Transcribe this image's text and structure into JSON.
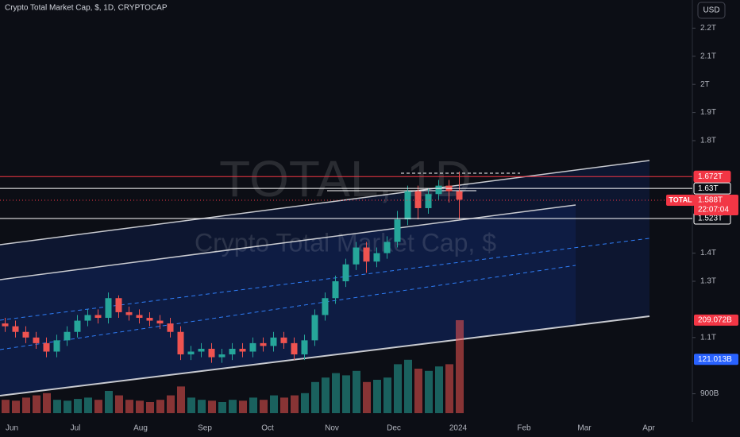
{
  "chart_data": {
    "type": "candlestick",
    "title": "Crypto Total Market Cap, $, 1D, CRYPTOCAP",
    "currency_button": "USD",
    "watermark": "TOTAL, 1D",
    "watermark_subtitle": "Crypto Total Market Cap, $",
    "time_labels": [
      "Jun",
      "Jul",
      "Aug",
      "Sep",
      "Oct",
      "Nov",
      "Dec",
      "2024",
      "Feb",
      "Mar",
      "Apr"
    ],
    "up_color": "#26a69a",
    "down_color": "#ef5350",
    "ylim": [
      0.8,
      2.3
    ],
    "yticks": [
      {
        "value": 0.9,
        "label": "900B"
      },
      {
        "value": 1.1,
        "label": "1.1T"
      },
      {
        "value": 1.3,
        "label": "1.3T"
      },
      {
        "value": 1.4,
        "label": "1.4T"
      },
      {
        "value": 1.8,
        "label": "1.8T"
      },
      {
        "value": 1.9,
        "label": "1.9T"
      },
      {
        "value": 2,
        "label": "2T"
      },
      {
        "value": 2.1,
        "label": "2.1T"
      },
      {
        "value": 2.2,
        "label": "2.2T"
      }
    ],
    "price_lines": [
      {
        "value": 1.672,
        "label": "1.672T",
        "color": "#f23645"
      },
      {
        "value": 1.63,
        "label": "1.63T",
        "color": "#ffffff"
      },
      {
        "value": 1.523,
        "label": "1.523T",
        "color": "#ffffff"
      }
    ],
    "last_price": {
      "name": "TOTAL",
      "value": 1.588,
      "label": "1.588T",
      "countdown": "22:07:04",
      "color": "#f23645"
    },
    "volume_tags": [
      {
        "value": 209.072,
        "label": "209.072B",
        "color": "#f23645"
      },
      {
        "value": 121.013,
        "label": "121.013B",
        "color": "#2962ff"
      }
    ],
    "candles": [
      [
        1.15,
        1.17,
        1.12,
        1.14
      ],
      [
        1.14,
        1.16,
        1.1,
        1.12
      ],
      [
        1.12,
        1.14,
        1.08,
        1.1
      ],
      [
        1.1,
        1.12,
        1.06,
        1.08
      ],
      [
        1.08,
        1.1,
        1.03,
        1.05
      ],
      [
        1.05,
        1.11,
        1.03,
        1.09
      ],
      [
        1.09,
        1.14,
        1.07,
        1.12
      ],
      [
        1.12,
        1.18,
        1.1,
        1.16
      ],
      [
        1.16,
        1.2,
        1.14,
        1.18
      ],
      [
        1.18,
        1.2,
        1.15,
        1.17
      ],
      [
        1.17,
        1.26,
        1.15,
        1.24
      ],
      [
        1.24,
        1.25,
        1.17,
        1.19
      ],
      [
        1.19,
        1.21,
        1.16,
        1.18
      ],
      [
        1.18,
        1.2,
        1.15,
        1.17
      ],
      [
        1.17,
        1.19,
        1.14,
        1.16
      ],
      [
        1.16,
        1.18,
        1.13,
        1.15
      ],
      [
        1.15,
        1.17,
        1.1,
        1.12
      ],
      [
        1.12,
        1.14,
        1.02,
        1.04
      ],
      [
        1.04,
        1.07,
        1.02,
        1.05
      ],
      [
        1.05,
        1.08,
        1.03,
        1.06
      ],
      [
        1.06,
        1.08,
        1.01,
        1.03
      ],
      [
        1.03,
        1.06,
        1.01,
        1.04
      ],
      [
        1.04,
        1.08,
        1.02,
        1.06
      ],
      [
        1.06,
        1.08,
        1.03,
        1.05
      ],
      [
        1.05,
        1.1,
        1.03,
        1.08
      ],
      [
        1.08,
        1.1,
        1.05,
        1.07
      ],
      [
        1.07,
        1.12,
        1.05,
        1.1
      ],
      [
        1.1,
        1.12,
        1.06,
        1.08
      ],
      [
        1.08,
        1.1,
        1.02,
        1.04
      ],
      [
        1.04,
        1.11,
        1.02,
        1.09
      ],
      [
        1.09,
        1.2,
        1.07,
        1.18
      ],
      [
        1.18,
        1.26,
        1.16,
        1.24
      ],
      [
        1.24,
        1.32,
        1.22,
        1.3
      ],
      [
        1.3,
        1.38,
        1.28,
        1.36
      ],
      [
        1.36,
        1.44,
        1.34,
        1.42
      ],
      [
        1.42,
        1.44,
        1.33,
        1.37
      ],
      [
        1.37,
        1.42,
        1.35,
        1.4
      ],
      [
        1.4,
        1.46,
        1.38,
        1.44
      ],
      [
        1.44,
        1.55,
        1.42,
        1.52
      ],
      [
        1.52,
        1.64,
        1.5,
        1.62
      ],
      [
        1.62,
        1.64,
        1.52,
        1.56
      ],
      [
        1.56,
        1.63,
        1.54,
        1.61
      ],
      [
        1.61,
        1.66,
        1.59,
        1.64
      ],
      [
        1.64,
        1.66,
        1.58,
        1.62
      ],
      [
        1.62,
        1.69,
        1.52,
        1.59
      ]
    ],
    "volumes": [
      30,
      28,
      35,
      40,
      45,
      30,
      28,
      32,
      35,
      30,
      50,
      40,
      30,
      28,
      25,
      30,
      40,
      60,
      35,
      30,
      28,
      25,
      30,
      28,
      35,
      30,
      40,
      35,
      40,
      45,
      70,
      80,
      90,
      85,
      95,
      70,
      75,
      80,
      110,
      120,
      100,
      95,
      105,
      110,
      209
    ]
  }
}
